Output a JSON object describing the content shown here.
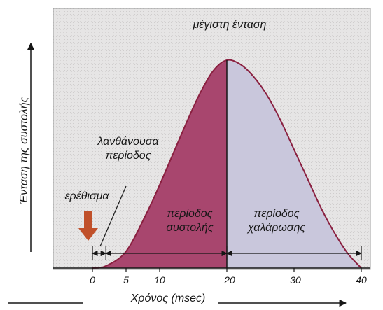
{
  "chart_data": {
    "type": "area",
    "xlabel": "Χρόνος (msec)",
    "ylabel": "Ένταση της συστολής",
    "x_ticks": [
      "0",
      "5",
      "10",
      "20",
      "30",
      "40"
    ],
    "xlim": [
      0,
      40
    ],
    "curve": {
      "x": [
        0,
        2,
        5,
        8,
        10,
        12,
        14,
        16,
        18,
        20,
        22,
        24,
        26,
        28,
        30,
        32,
        34,
        36,
        38,
        40
      ],
      "y": [
        0,
        1,
        8,
        26,
        40,
        55,
        70,
        84,
        95,
        100,
        98,
        92,
        83,
        71,
        57,
        43,
        29,
        17,
        7,
        0
      ]
    },
    "stimulus_time": 0,
    "latent_period": [
      0,
      2
    ],
    "contraction_period": [
      2,
      20
    ],
    "relaxation_period": [
      20,
      40
    ],
    "peak_time": 20,
    "annotations": {
      "peak": "μέγιστη ένταση",
      "latent": "λανθάνουσα περίοδος",
      "stimulus": "ερέθισμα",
      "contraction": "περίοδος συστολής",
      "relaxation": "περίοδος χαλάρωσης"
    },
    "colors": {
      "contraction_fill": "#a8466e",
      "relaxation_fill": "#c9c7dc",
      "curve": "#8a2040",
      "stimulus_arrow": "#c0502a",
      "background": "#e4e3e3"
    }
  }
}
